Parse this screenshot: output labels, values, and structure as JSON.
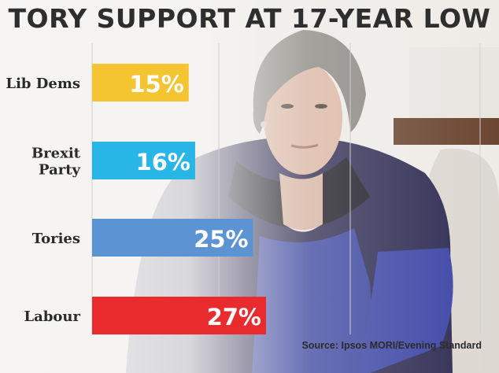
{
  "title": "TORY SUPPORT AT 17-YEAR LOW",
  "source": "Source: Ipsos MORI/Evening Standard",
  "chart_data": {
    "type": "bar",
    "orientation": "horizontal",
    "title": "TORY SUPPORT AT 17-YEAR LOW",
    "categories": [
      [
        "Lib Dems"
      ],
      [
        "Brexit",
        "Party"
      ],
      [
        "Tories"
      ],
      [
        "Labour"
      ]
    ],
    "values": [
      15,
      16,
      25,
      27
    ],
    "value_labels": [
      "15%",
      "16%",
      "25%",
      "27%"
    ],
    "colors": [
      "#f4c531",
      "#27b6e6",
      "#5b93d3",
      "#ea2b2e"
    ],
    "grid": true,
    "xlim": [
      0,
      27
    ]
  }
}
